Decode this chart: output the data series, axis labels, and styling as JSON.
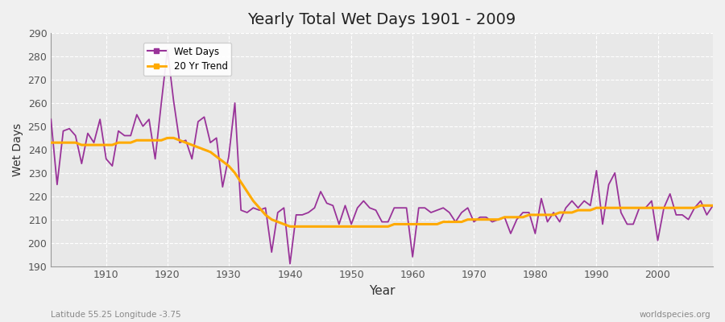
{
  "title": "Yearly Total Wet Days 1901 - 2009",
  "xlabel": "Year",
  "ylabel": "Wet Days",
  "subtitle_left": "Latitude 55.25 Longitude -3.75",
  "subtitle_right": "worldspecies.org",
  "ylim": [
    190,
    290
  ],
  "xlim": [
    1901,
    2009
  ],
  "yticks": [
    190,
    200,
    210,
    220,
    230,
    240,
    250,
    260,
    270,
    280,
    290
  ],
  "xticks": [
    1910,
    1920,
    1930,
    1940,
    1950,
    1960,
    1970,
    1980,
    1990,
    2000
  ],
  "wet_days_color": "#993399",
  "trend_color": "#ffaa00",
  "bg_color": "#f0f0f0",
  "plot_bg_color": "#e8e8e8",
  "grid_color": "#ffffff",
  "years": [
    1901,
    1902,
    1903,
    1904,
    1905,
    1906,
    1907,
    1908,
    1909,
    1910,
    1911,
    1912,
    1913,
    1914,
    1915,
    1916,
    1917,
    1918,
    1919,
    1920,
    1921,
    1922,
    1923,
    1924,
    1925,
    1926,
    1927,
    1928,
    1929,
    1930,
    1931,
    1932,
    1933,
    1934,
    1935,
    1936,
    1937,
    1938,
    1939,
    1940,
    1941,
    1942,
    1943,
    1944,
    1945,
    1946,
    1947,
    1948,
    1949,
    1950,
    1951,
    1952,
    1953,
    1954,
    1955,
    1956,
    1957,
    1958,
    1959,
    1960,
    1961,
    1962,
    1963,
    1964,
    1965,
    1966,
    1967,
    1968,
    1969,
    1970,
    1971,
    1972,
    1973,
    1974,
    1975,
    1976,
    1977,
    1978,
    1979,
    1980,
    1981,
    1982,
    1983,
    1984,
    1985,
    1986,
    1987,
    1988,
    1989,
    1990,
    1991,
    1992,
    1993,
    1994,
    1995,
    1996,
    1997,
    1998,
    1999,
    2000,
    2001,
    2002,
    2003,
    2004,
    2005,
    2006,
    2007,
    2008,
    2009
  ],
  "wet_days": [
    253,
    225,
    248,
    249,
    246,
    234,
    247,
    243,
    253,
    236,
    233,
    248,
    246,
    246,
    255,
    250,
    253,
    236,
    260,
    283,
    261,
    243,
    244,
    236,
    252,
    254,
    243,
    245,
    224,
    237,
    260,
    214,
    213,
    215,
    214,
    215,
    196,
    213,
    215,
    191,
    212,
    212,
    213,
    215,
    222,
    217,
    216,
    208,
    216,
    208,
    215,
    218,
    215,
    214,
    209,
    209,
    215,
    215,
    215,
    194,
    215,
    215,
    213,
    214,
    215,
    213,
    209,
    213,
    215,
    209,
    211,
    211,
    209,
    210,
    211,
    204,
    210,
    213,
    213,
    204,
    219,
    209,
    213,
    209,
    215,
    218,
    215,
    218,
    216,
    231,
    208,
    225,
    230,
    213,
    208,
    208,
    215,
    215,
    218,
    201,
    215,
    221,
    212,
    212,
    210,
    215,
    218,
    212,
    216
  ],
  "trend": [
    243,
    243,
    243,
    243,
    243,
    242,
    242,
    242,
    242,
    242,
    242,
    243,
    243,
    243,
    244,
    244,
    244,
    244,
    244,
    245,
    245,
    244,
    243,
    242,
    241,
    240,
    239,
    237,
    235,
    233,
    230,
    226,
    222,
    218,
    215,
    212,
    210,
    209,
    208,
    207,
    207,
    207,
    207,
    207,
    207,
    207,
    207,
    207,
    207,
    207,
    207,
    207,
    207,
    207,
    207,
    207,
    208,
    208,
    208,
    208,
    208,
    208,
    208,
    208,
    209,
    209,
    209,
    209,
    210,
    210,
    210,
    210,
    210,
    210,
    211,
    211,
    211,
    211,
    212,
    212,
    212,
    212,
    212,
    213,
    213,
    213,
    214,
    214,
    214,
    215,
    215,
    215,
    215,
    215,
    215,
    215,
    215,
    215,
    215,
    215,
    215,
    215,
    215,
    215,
    215,
    215,
    216,
    216,
    216
  ]
}
